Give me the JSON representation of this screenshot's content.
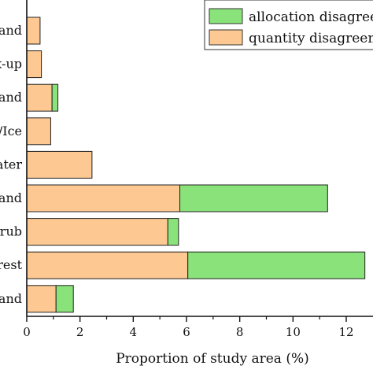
{
  "chart_data": {
    "type": "bar",
    "orientation": "horizontal",
    "stacked": true,
    "categories": [
      "and",
      "x-up",
      "and",
      "/Ice",
      "ater",
      "and",
      "rub",
      "rest",
      "and"
    ],
    "series": [
      {
        "name": "quantity disagreement",
        "color": "#fdc891",
        "values": [
          0.5,
          0.55,
          0.95,
          0.9,
          2.45,
          5.75,
          5.3,
          6.05,
          1.1
        ]
      },
      {
        "name": "allocation disagreement",
        "color": "#8ae27b",
        "values": [
          0.0,
          0.0,
          0.22,
          0.0,
          0.0,
          5.55,
          0.4,
          6.65,
          0.65
        ]
      }
    ],
    "legend_display": [
      "allocation disagreem",
      "quantity disagreeme"
    ],
    "legend_position": "top-right",
    "xlabel": "Proportion of study area (%)",
    "ylabel": "",
    "xlim": [
      0,
      12.8
    ],
    "xticks": [
      0,
      2,
      4,
      6,
      8,
      10,
      12
    ],
    "grid": false
  }
}
